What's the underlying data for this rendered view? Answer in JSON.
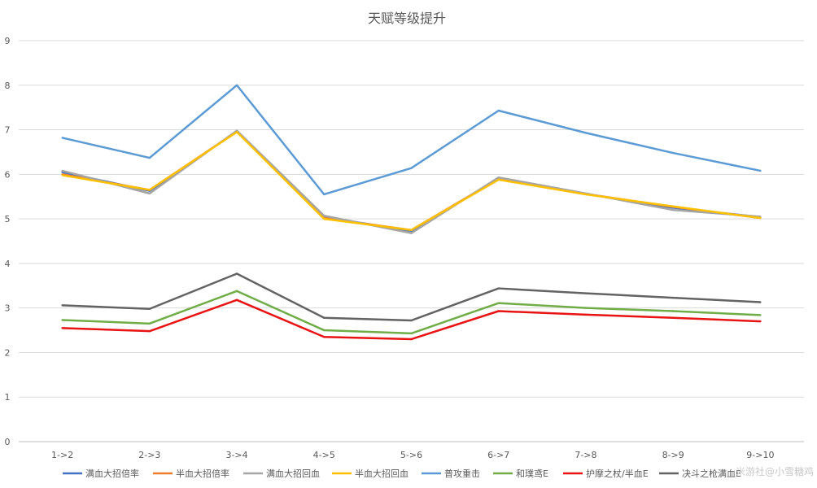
{
  "chart_data": {
    "type": "line",
    "title": "天赋等级提升",
    "categories": [
      "1->2",
      "2->3",
      "3->4",
      "4->5",
      "5->6",
      "6->7",
      "7->8",
      "8->9",
      "9->10"
    ],
    "ylim": [
      0,
      9
    ],
    "yticks": [
      0,
      1,
      2,
      3,
      4,
      5,
      6,
      7,
      8,
      9
    ],
    "grid": "horizontal",
    "legend_position": "bottom",
    "series": [
      {
        "name": "满血大招倍率",
        "color": "#4472c4",
        "values": [
          6.05,
          5.63,
          6.96,
          5.04,
          4.73,
          5.9,
          5.56,
          5.25,
          5.04
        ]
      },
      {
        "name": "半血大招倍率",
        "color": "#ed7d31",
        "values": [
          6.0,
          5.65,
          6.96,
          5.02,
          4.75,
          5.9,
          5.56,
          5.27,
          5.02
        ]
      },
      {
        "name": "满血大招回血",
        "color": "#a5a5a5",
        "values": [
          6.08,
          5.57,
          6.98,
          5.07,
          4.68,
          5.93,
          5.57,
          5.2,
          5.05
        ]
      },
      {
        "name": "半血大招回血",
        "color": "#ffc000",
        "values": [
          5.98,
          5.65,
          6.95,
          5.0,
          4.75,
          5.88,
          5.55,
          5.28,
          5.02
        ]
      },
      {
        "name": "普攻重击",
        "color": "#5b9bd5",
        "values": [
          6.82,
          6.37,
          8.0,
          5.55,
          6.14,
          7.43,
          6.93,
          6.48,
          6.08
        ]
      },
      {
        "name": "和璞鸢E",
        "color": "#70ad47",
        "values": [
          2.73,
          2.65,
          3.38,
          2.5,
          2.43,
          3.11,
          3.0,
          2.93,
          2.84
        ]
      },
      {
        "name": "护摩之杖/半血E",
        "color": "#e81313",
        "values": [
          2.55,
          2.48,
          3.18,
          2.35,
          2.3,
          2.93,
          2.85,
          2.78,
          2.7
        ]
      },
      {
        "name": "决斗之枪满血E",
        "color": "#636363",
        "values": [
          3.06,
          2.98,
          3.77,
          2.78,
          2.72,
          3.44,
          3.33,
          3.23,
          3.13
        ]
      }
    ]
  },
  "watermark": "米游社@小雪糖鸡"
}
